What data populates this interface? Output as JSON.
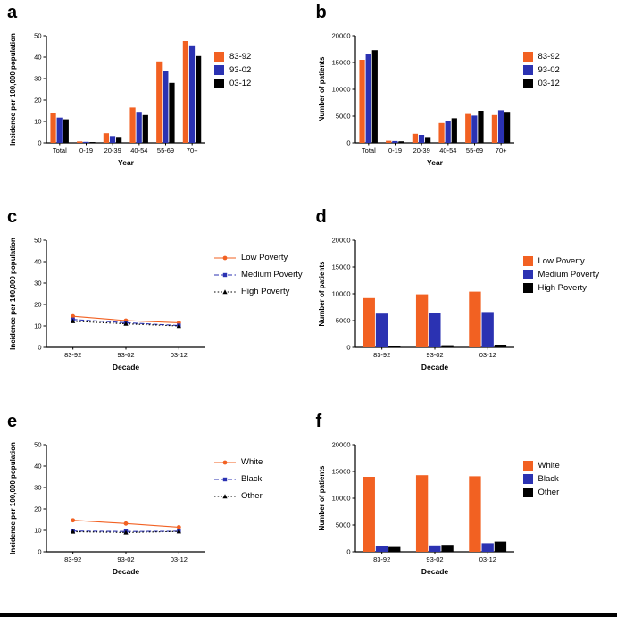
{
  "colors": {
    "orange": "#F26122",
    "blue": "#2B32B2",
    "black": "#000000"
  },
  "chart_data": [
    {
      "panel": "a",
      "type": "bar",
      "legend_type": "swatch",
      "ylabel": "Incidence per 100,000 population",
      "xlabel": "Year",
      "categories": [
        "Total",
        "0-19",
        "20-39",
        "40-54",
        "55-69",
        "70+"
      ],
      "ylim": [
        0,
        50
      ],
      "yticks": [
        0,
        10,
        20,
        30,
        40,
        50
      ],
      "series": [
        {
          "name": "83-92",
          "color": "#F26122",
          "values": [
            13.8,
            0.7,
            4.5,
            16.5,
            38,
            47.5
          ]
        },
        {
          "name": "93-02",
          "color": "#2B32B2",
          "values": [
            11.8,
            0.5,
            3.2,
            14.5,
            33.5,
            45.5
          ]
        },
        {
          "name": "03-12",
          "color": "#000000",
          "values": [
            11,
            0.4,
            2.8,
            13,
            28,
            40.5
          ]
        }
      ]
    },
    {
      "panel": "b",
      "type": "bar",
      "legend_type": "swatch",
      "ylabel": "Number of patients",
      "xlabel": "Year",
      "categories": [
        "Total",
        "0-19",
        "20-39",
        "40-54",
        "55-69",
        "70+"
      ],
      "ylim": [
        0,
        20000
      ],
      "yticks": [
        0,
        5000,
        10000,
        15000,
        20000
      ],
      "series": [
        {
          "name": "83-92",
          "color": "#F26122",
          "values": [
            15500,
            400,
            1700,
            3700,
            5400,
            5200
          ]
        },
        {
          "name": "93-02",
          "color": "#2B32B2",
          "values": [
            16600,
            350,
            1500,
            4000,
            5100,
            6100
          ]
        },
        {
          "name": "03-12",
          "color": "#000000",
          "values": [
            17300,
            300,
            1100,
            4600,
            6000,
            5800
          ]
        }
      ]
    },
    {
      "panel": "c",
      "type": "line",
      "legend_type": "line",
      "ylabel": "Incidence per 100,000 population",
      "xlabel": "Decade",
      "categories": [
        "83-92",
        "93-02",
        "03-12"
      ],
      "ylim": [
        0,
        50
      ],
      "yticks": [
        0,
        10,
        20,
        30,
        40,
        50
      ],
      "series": [
        {
          "name": "Low Poverty",
          "color": "#F26122",
          "values": [
            14.5,
            12.5,
            11.5
          ],
          "marker": "circle",
          "dash": "solid"
        },
        {
          "name": "Medium Poverty",
          "color": "#2B32B2",
          "values": [
            13,
            11.5,
            10.2
          ],
          "marker": "square",
          "dash": "dashed"
        },
        {
          "name": "High Poverty",
          "color": "#000000",
          "values": [
            12.2,
            11,
            10
          ],
          "marker": "triangle",
          "dash": "dotted"
        }
      ]
    },
    {
      "panel": "d",
      "type": "bar",
      "legend_type": "swatch",
      "ylabel": "Number of patients",
      "xlabel": "Decade",
      "categories": [
        "83-92",
        "93-02",
        "03-12"
      ],
      "ylim": [
        0,
        20000
      ],
      "yticks": [
        0,
        5000,
        10000,
        15000,
        20000
      ],
      "series": [
        {
          "name": "Low Poverty",
          "color": "#F26122",
          "values": [
            9200,
            9900,
            10400
          ]
        },
        {
          "name": "Medium Poverty",
          "color": "#2B32B2",
          "values": [
            6300,
            6500,
            6600
          ]
        },
        {
          "name": "High Poverty",
          "color": "#000000",
          "values": [
            300,
            400,
            500
          ]
        }
      ]
    },
    {
      "panel": "e",
      "type": "line",
      "legend_type": "line",
      "ylabel": "Incidence per 100,000 population",
      "xlabel": "Decade",
      "categories": [
        "83-92",
        "93-02",
        "03-12"
      ],
      "ylim": [
        0,
        50
      ],
      "yticks": [
        0,
        10,
        20,
        30,
        40,
        50
      ],
      "series": [
        {
          "name": "White",
          "color": "#F26122",
          "values": [
            14.7,
            13.2,
            11.5
          ],
          "marker": "circle",
          "dash": "solid"
        },
        {
          "name": "Black",
          "color": "#2B32B2",
          "values": [
            9.7,
            9.5,
            9.6
          ],
          "marker": "square",
          "dash": "dashed"
        },
        {
          "name": "Other",
          "color": "#000000",
          "values": [
            9.4,
            9.0,
            9.5
          ],
          "marker": "triangle",
          "dash": "dotted"
        }
      ]
    },
    {
      "panel": "f",
      "type": "bar",
      "legend_type": "swatch",
      "ylabel": "Number of patients",
      "xlabel": "Decade",
      "categories": [
        "83-92",
        "93-02",
        "03-12"
      ],
      "ylim": [
        0,
        20000
      ],
      "yticks": [
        0,
        5000,
        10000,
        15000,
        20000
      ],
      "series": [
        {
          "name": "White",
          "color": "#F26122",
          "values": [
            14000,
            14300,
            14100
          ]
        },
        {
          "name": "Black",
          "color": "#2B32B2",
          "values": [
            1000,
            1200,
            1600
          ]
        },
        {
          "name": "Other",
          "color": "#000000",
          "values": [
            900,
            1300,
            1900
          ]
        }
      ]
    }
  ]
}
